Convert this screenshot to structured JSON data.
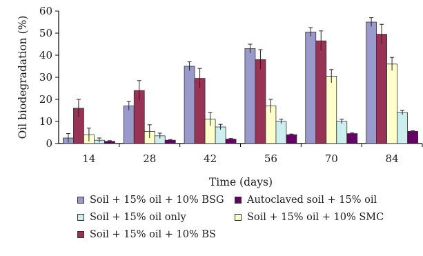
{
  "chart_data": {
    "type": "bar",
    "title": "",
    "xlabel": "Time (days)",
    "ylabel": "Oil biodegradation (%)",
    "categories": [
      "14",
      "28",
      "42",
      "56",
      "70",
      "84"
    ],
    "ylim": [
      0,
      60
    ],
    "yticks": [
      "0",
      "10",
      "20",
      "30",
      "40",
      "50",
      "60"
    ],
    "grid": false,
    "legend_placement": "bottom",
    "series": [
      {
        "name": "Soil + 15% oil + 10% BSG",
        "color": "#9999cc",
        "values": [
          2.5,
          17,
          35,
          43,
          50.5,
          55
        ],
        "errors": [
          2,
          2,
          2,
          2,
          2,
          2
        ]
      },
      {
        "name": "Soil + 15% oil + 10% BS",
        "color": "#993355",
        "values": [
          16,
          24,
          29.5,
          38,
          46.5,
          49.5
        ],
        "errors": [
          4,
          4.5,
          4.5,
          4.5,
          4.5,
          4.5
        ]
      },
      {
        "name": "Soil + 15% oil + 10% SMC",
        "color": "#ffffcc",
        "values": [
          4,
          5.5,
          11,
          17,
          30.5,
          36
        ],
        "errors": [
          3,
          3,
          3,
          3,
          3,
          3
        ]
      },
      {
        "name": "Soil + 15% oil only",
        "color": "#cceeee",
        "values": [
          1.5,
          3.5,
          7.5,
          10,
          10,
          14
        ],
        "errors": [
          1,
          1.2,
          1.2,
          1,
          1,
          1
        ]
      },
      {
        "name": "Autoclaved soil + 15% oil",
        "color": "#660066",
        "values": [
          1,
          1.5,
          2,
          4,
          4.5,
          5.5
        ],
        "errors": [
          0.3,
          0.3,
          0.3,
          0.3,
          0.3,
          0.3
        ]
      }
    ],
    "legend_order": [
      0,
      4,
      3,
      2,
      1
    ]
  }
}
